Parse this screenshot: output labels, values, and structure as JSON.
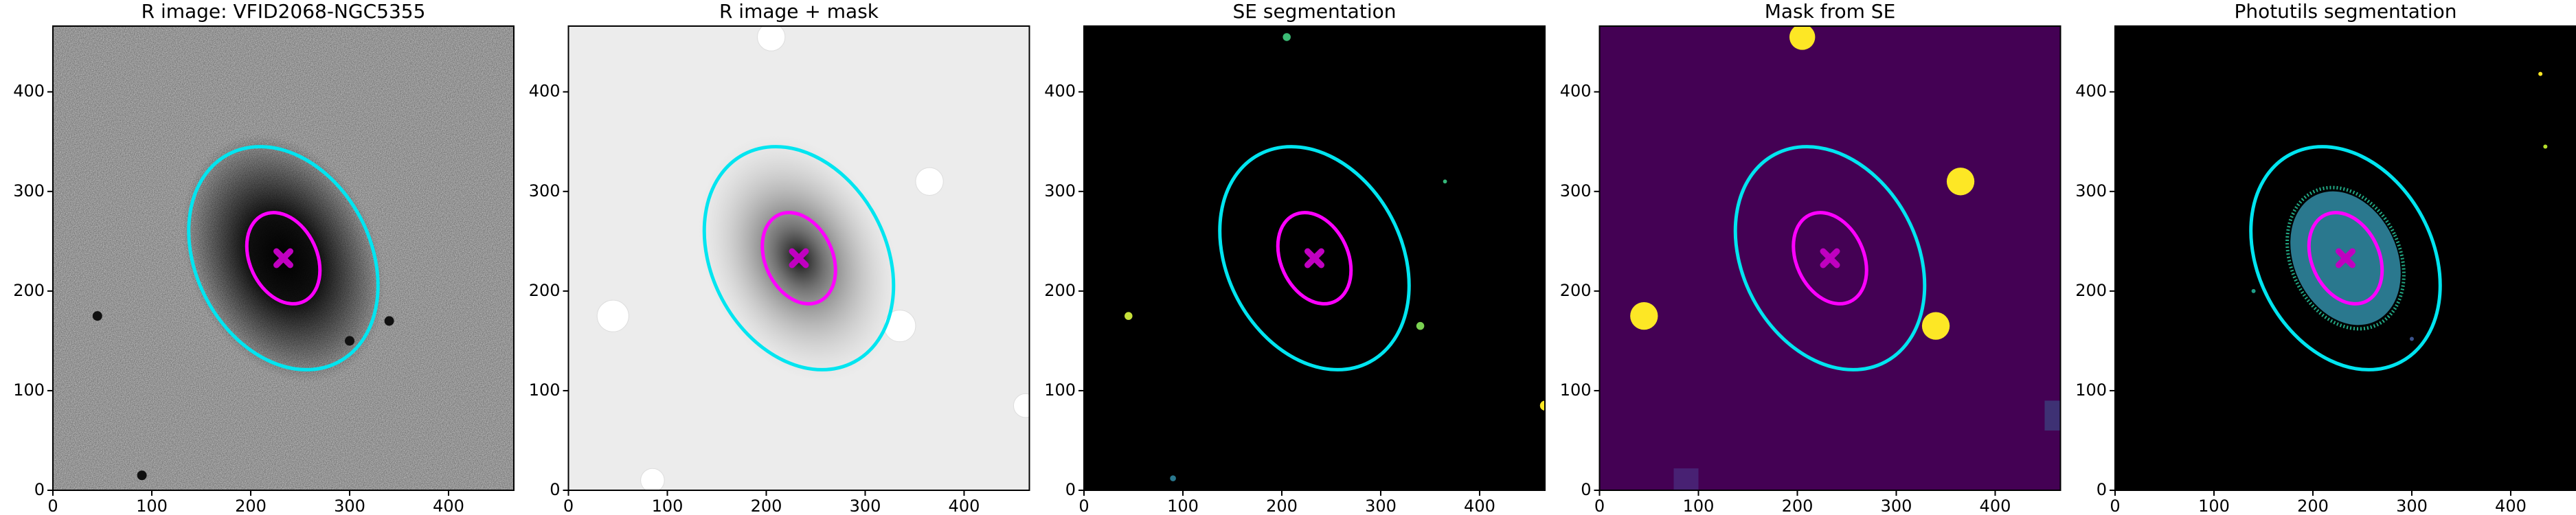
{
  "chart_data": [
    {
      "type": "image",
      "title": "R image: VFID2068-NGC5355",
      "xlim": [
        0,
        466
      ],
      "ylim": [
        0,
        466
      ],
      "xticks": [
        0,
        100,
        200,
        300,
        400
      ],
      "yticks": [
        0,
        100,
        200,
        300,
        400
      ]
    },
    {
      "type": "image",
      "title": "R image + mask",
      "xlim": [
        0,
        466
      ],
      "ylim": [
        0,
        466
      ],
      "xticks": [
        0,
        100,
        200,
        300,
        400
      ],
      "yticks": [
        0,
        100,
        200,
        300,
        400
      ]
    },
    {
      "type": "image",
      "title": "SE segmentation",
      "xlim": [
        0,
        466
      ],
      "ylim": [
        0,
        466
      ],
      "xticks": [
        0,
        100,
        200,
        300,
        400
      ],
      "yticks": [
        0,
        100,
        200,
        300,
        400
      ]
    },
    {
      "type": "image",
      "title": "Mask from SE",
      "xlim": [
        0,
        466
      ],
      "ylim": [
        0,
        466
      ],
      "xticks": [
        0,
        100,
        200,
        300,
        400
      ],
      "yticks": [
        0,
        100,
        200,
        300,
        400
      ]
    },
    {
      "type": "image",
      "title": "Photutils segmentation",
      "xlim": [
        0,
        466
      ],
      "ylim": [
        0,
        466
      ],
      "xticks": [
        0,
        100,
        200,
        300,
        400
      ],
      "yticks": [
        0,
        100,
        200,
        300,
        400
      ]
    }
  ]
}
